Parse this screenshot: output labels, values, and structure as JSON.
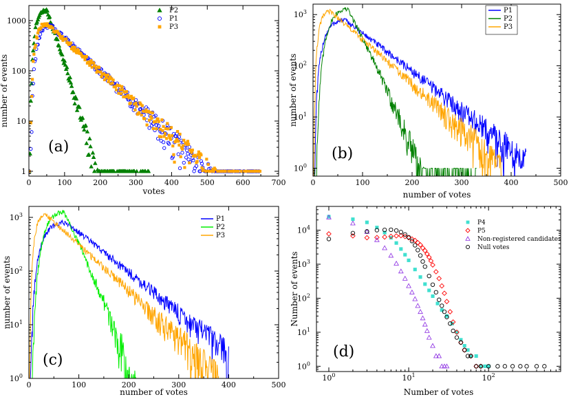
{
  "chart_data": [
    {
      "panel": "(a)",
      "type": "scatter",
      "xlabel": "votes",
      "ylabel": "number of events",
      "xscale": "linear",
      "yscale": "log",
      "xlim": [
        0,
        700
      ],
      "ylim": [
        0.8,
        2000
      ],
      "xticks": [
        0,
        100,
        200,
        300,
        400,
        500,
        600,
        700
      ],
      "xtick_labels": [
        "0",
        "100",
        "200",
        "300",
        "400",
        "500",
        "600",
        "700"
      ],
      "yticks": [
        1,
        10,
        100,
        1000
      ],
      "ytick_labels": [
        "1",
        "10",
        "100",
        "1000"
      ],
      "legend_position": "top-center",
      "series": [
        {
          "name": "P2",
          "color": "#008000",
          "marker": "triangle",
          "peak": 50,
          "peakValue": 1600,
          "width": 0.75,
          "decay": 22,
          "end": 340
        },
        {
          "name": "P1",
          "color": "#0000ff",
          "marker": "circle-open",
          "peak": 60,
          "peakValue": 800,
          "width": 0.7,
          "decay": 68,
          "end": 650
        },
        {
          "name": "P3",
          "color": "#ffa500",
          "marker": "square",
          "peak": 50,
          "peakValue": 850,
          "width": 0.75,
          "decay": 70,
          "end": 650
        }
      ]
    },
    {
      "panel": "(b)",
      "type": "line",
      "xlabel": "number of votes",
      "ylabel": "number of events",
      "xscale": "linear",
      "yscale": "log",
      "xlim": [
        0,
        500
      ],
      "ylim": [
        0.7,
        1600
      ],
      "xticks": [
        0,
        100,
        200,
        300,
        400,
        500
      ],
      "xtick_labels": [
        "0",
        "100",
        "200",
        "300",
        "400",
        "500"
      ],
      "yticks": [
        1,
        10,
        100,
        1000
      ],
      "ytick_labels": [
        "10",
        "10",
        "10",
        "10"
      ],
      "ytick_exponents": [
        "0",
        "1",
        "2",
        "3"
      ],
      "legend_position": "top-right",
      "series": [
        {
          "name": "P1",
          "color": "#0000ff",
          "peak": 65,
          "peakValue": 780,
          "width": 0.8,
          "decay": 60,
          "end": 430
        },
        {
          "name": "P2",
          "color": "#008000",
          "peak": 70,
          "peakValue": 1280,
          "width": 0.6,
          "decay": 24,
          "end": 330
        },
        {
          "name": "P3",
          "color": "#ffa500",
          "peak": 35,
          "peakValue": 1150,
          "width": 0.8,
          "decay": 52,
          "end": 380
        }
      ]
    },
    {
      "panel": "(c)",
      "type": "line",
      "xlabel": "number of votes",
      "ylabel": "number of events",
      "xscale": "linear",
      "yscale": "log",
      "xlim": [
        0,
        500
      ],
      "ylim": [
        1,
        1600
      ],
      "xticks": [
        0,
        100,
        200,
        300,
        400,
        500
      ],
      "xtick_labels": [
        "0",
        "100",
        "200",
        "300",
        "400",
        "500"
      ],
      "yticks": [
        1,
        10,
        100,
        1000
      ],
      "ytick_labels": [
        "10",
        "10",
        "10",
        "10"
      ],
      "ytick_exponents": [
        "0",
        "1",
        "2",
        "3"
      ],
      "legend_position": "top-right",
      "series": [
        {
          "name": "P1",
          "color": "#0000ff",
          "peak": 75,
          "peakValue": 800,
          "width": 0.8,
          "decay": 60,
          "end": 400
        },
        {
          "name": "P2",
          "color": "#00ee00",
          "peak": 70,
          "peakValue": 1250,
          "width": 0.6,
          "decay": 23,
          "end": 310
        },
        {
          "name": "P3",
          "color": "#ffa500",
          "peak": 35,
          "peakValue": 1100,
          "width": 0.8,
          "decay": 52,
          "end": 380
        }
      ]
    },
    {
      "panel": "(d)",
      "type": "scatter",
      "xlabel": "Number of votes",
      "ylabel": "Number of events",
      "xscale": "log",
      "yscale": "log",
      "xlim": [
        0.7,
        800
      ],
      "ylim": [
        0.7,
        50000
      ],
      "xticks": [
        1,
        10,
        100
      ],
      "xtick_labels": [
        "10",
        "10",
        "10"
      ],
      "xtick_exponents": [
        "0",
        "1",
        "2"
      ],
      "yticks": [
        1,
        10,
        100,
        1000,
        10000
      ],
      "ytick_labels": [
        "10",
        "10",
        "10",
        "10",
        "10"
      ],
      "ytick_exponents": [
        "0",
        "1",
        "2",
        "3",
        "4"
      ],
      "legend_position": "top-right",
      "series": [
        {
          "name": "P4",
          "color": "#40e0d0",
          "marker": "square",
          "x": [
            1,
            2,
            3,
            4,
            5,
            6,
            7,
            8,
            9,
            10,
            12,
            14,
            16,
            18,
            20,
            23,
            26,
            30,
            35,
            40,
            45,
            50,
            55,
            60,
            70,
            80,
            90,
            100
          ],
          "y": [
            25000,
            21000,
            17000,
            12000,
            8500,
            6000,
            4200,
            2800,
            1900,
            1300,
            700,
            420,
            260,
            170,
            115,
            70,
            45,
            30,
            18,
            10,
            6,
            4,
            3,
            2,
            2,
            1,
            1,
            1
          ]
        },
        {
          "name": "P5",
          "color": "#ff0000",
          "marker": "diamond",
          "x": [
            1,
            2,
            3,
            4,
            5,
            6,
            7,
            8,
            9,
            10,
            11,
            12,
            13,
            14,
            15,
            16,
            17,
            18,
            19,
            20,
            22,
            24,
            26,
            28,
            30,
            33,
            36,
            40,
            45,
            50,
            60,
            70,
            80
          ],
          "y": [
            7800,
            6800,
            6000,
            6100,
            6300,
            6600,
            6800,
            6900,
            6500,
            6000,
            5500,
            5000,
            4300,
            3700,
            3000,
            2500,
            2000,
            1600,
            1250,
            950,
            600,
            380,
            230,
            140,
            80,
            40,
            20,
            10,
            5,
            3,
            2,
            1,
            1
          ]
        },
        {
          "name": "Non-registered candidates",
          "color": "#8a2be2",
          "marker": "triangle-open",
          "x": [
            1,
            2,
            3,
            4,
            5,
            6,
            7,
            8,
            9,
            10,
            11,
            12,
            13,
            14,
            15,
            16,
            17,
            18,
            20,
            22,
            24,
            26,
            28,
            30
          ],
          "y": [
            24000,
            16000,
            9000,
            5200,
            3000,
            1800,
            1050,
            620,
            380,
            230,
            150,
            95,
            60,
            40,
            26,
            17,
            11,
            7,
            4,
            2,
            2,
            1,
            1,
            1
          ]
        },
        {
          "name": "Null votes",
          "color": "#000000",
          "marker": "circle-open",
          "x": [
            1,
            2,
            3,
            4,
            5,
            6,
            7,
            8,
            9,
            10,
            11,
            12,
            13,
            14,
            15,
            16,
            18,
            20,
            22,
            24,
            26,
            28,
            30,
            33,
            36,
            40,
            45,
            50,
            55,
            60,
            70,
            80,
            100,
            130,
            160,
            200,
            250,
            300,
            400,
            500
          ],
          "y": [
            5500,
            8200,
            9200,
            10000,
            10200,
            10300,
            9800,
            8800,
            7500,
            6200,
            4800,
            3600,
            2600,
            1800,
            1200,
            850,
            450,
            250,
            150,
            90,
            60,
            40,
            28,
            18,
            11,
            7,
            5,
            3,
            2,
            2,
            1,
            1,
            1,
            1,
            1,
            1,
            1,
            1,
            1,
            1
          ]
        }
      ]
    }
  ]
}
